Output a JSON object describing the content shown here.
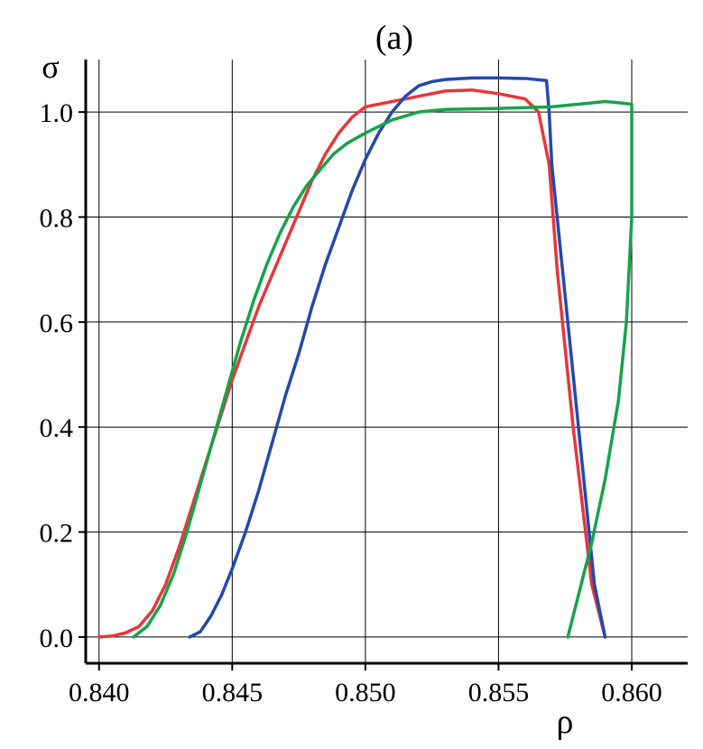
{
  "chart_data": {
    "type": "line",
    "title": "(a)",
    "xlabel": "ρ",
    "ylabel": "σ",
    "xlim": [
      0.8395,
      0.8621
    ],
    "ylim": [
      -0.05,
      1.1
    ],
    "grid": true,
    "x_ticks": [
      0.84,
      0.845,
      0.85,
      0.855,
      0.86
    ],
    "x_tick_labels": [
      "0.840",
      "0.845",
      "0.850",
      "0.855",
      "0.860"
    ],
    "y_ticks": [
      0.0,
      0.2,
      0.4,
      0.6,
      0.8,
      1.0
    ],
    "y_tick_labels": [
      "0.0",
      "0.2",
      "0.4",
      "0.6",
      "0.8",
      "1.0"
    ],
    "series": [
      {
        "color": "#e8363a",
        "points": [
          [
            0.84,
            0.0
          ],
          [
            0.8405,
            0.002
          ],
          [
            0.841,
            0.008
          ],
          [
            0.8415,
            0.02
          ],
          [
            0.842,
            0.05
          ],
          [
            0.8425,
            0.1
          ],
          [
            0.843,
            0.17
          ],
          [
            0.8435,
            0.25
          ],
          [
            0.844,
            0.33
          ],
          [
            0.8445,
            0.41
          ],
          [
            0.845,
            0.49
          ],
          [
            0.8455,
            0.56
          ],
          [
            0.846,
            0.63
          ],
          [
            0.8465,
            0.69
          ],
          [
            0.847,
            0.75
          ],
          [
            0.8475,
            0.81
          ],
          [
            0.848,
            0.87
          ],
          [
            0.8485,
            0.92
          ],
          [
            0.849,
            0.96
          ],
          [
            0.8495,
            0.99
          ],
          [
            0.85,
            1.01
          ],
          [
            0.851,
            1.02
          ],
          [
            0.852,
            1.03
          ],
          [
            0.853,
            1.04
          ],
          [
            0.854,
            1.042
          ],
          [
            0.855,
            1.035
          ],
          [
            0.856,
            1.025
          ],
          [
            0.8565,
            1.0
          ],
          [
            0.8569,
            0.9
          ],
          [
            0.8572,
            0.7
          ],
          [
            0.8578,
            0.4
          ],
          [
            0.8585,
            0.1
          ],
          [
            0.859,
            0.0
          ]
        ]
      },
      {
        "color": "#2448b0",
        "points": [
          [
            0.8434,
            0.0
          ],
          [
            0.8438,
            0.01
          ],
          [
            0.8442,
            0.04
          ],
          [
            0.8446,
            0.08
          ],
          [
            0.845,
            0.13
          ],
          [
            0.8455,
            0.2
          ],
          [
            0.846,
            0.28
          ],
          [
            0.8465,
            0.37
          ],
          [
            0.847,
            0.46
          ],
          [
            0.8475,
            0.54
          ],
          [
            0.848,
            0.63
          ],
          [
            0.8485,
            0.71
          ],
          [
            0.849,
            0.78
          ],
          [
            0.8495,
            0.85
          ],
          [
            0.85,
            0.91
          ],
          [
            0.8505,
            0.96
          ],
          [
            0.851,
            1.0
          ],
          [
            0.8515,
            1.03
          ],
          [
            0.852,
            1.05
          ],
          [
            0.8525,
            1.058
          ],
          [
            0.853,
            1.062
          ],
          [
            0.854,
            1.065
          ],
          [
            0.855,
            1.065
          ],
          [
            0.856,
            1.064
          ],
          [
            0.8568,
            1.06
          ],
          [
            0.8569,
            1.0
          ],
          [
            0.857,
            0.9
          ],
          [
            0.8574,
            0.7
          ],
          [
            0.858,
            0.4
          ],
          [
            0.8586,
            0.1
          ],
          [
            0.8588,
            0.05
          ],
          [
            0.859,
            0.0
          ]
        ]
      },
      {
        "color": "#16a34a",
        "points": [
          [
            0.8413,
            0.0
          ],
          [
            0.8418,
            0.02
          ],
          [
            0.8423,
            0.06
          ],
          [
            0.8428,
            0.12
          ],
          [
            0.8433,
            0.2
          ],
          [
            0.8438,
            0.29
          ],
          [
            0.8443,
            0.38
          ],
          [
            0.8448,
            0.47
          ],
          [
            0.8453,
            0.56
          ],
          [
            0.8458,
            0.64
          ],
          [
            0.8463,
            0.71
          ],
          [
            0.8468,
            0.77
          ],
          [
            0.8473,
            0.82
          ],
          [
            0.8478,
            0.86
          ],
          [
            0.8483,
            0.89
          ],
          [
            0.8488,
            0.92
          ],
          [
            0.8493,
            0.94
          ],
          [
            0.85,
            0.96
          ],
          [
            0.851,
            0.985
          ],
          [
            0.852,
            1.0
          ],
          [
            0.853,
            1.005
          ],
          [
            0.855,
            1.007
          ],
          [
            0.857,
            1.01
          ],
          [
            0.858,
            1.015
          ],
          [
            0.859,
            1.02
          ],
          [
            0.8595,
            1.018
          ],
          [
            0.86,
            1.015
          ],
          [
            0.86,
            0.8
          ],
          [
            0.8598,
            0.6
          ],
          [
            0.8595,
            0.45
          ],
          [
            0.859,
            0.3
          ],
          [
            0.8585,
            0.18
          ],
          [
            0.858,
            0.08
          ],
          [
            0.8576,
            0.0
          ]
        ]
      }
    ]
  }
}
